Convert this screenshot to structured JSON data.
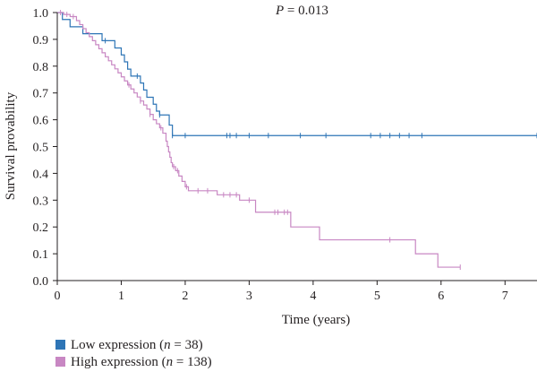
{
  "chart_data": {
    "type": "line",
    "subtype": "kaplan-meier",
    "annotation": {
      "p_label": "P",
      "p_value": "= 0.013"
    },
    "xlabel": "Time (years)",
    "ylabel": "Survival provability",
    "xlim": [
      0,
      7.5
    ],
    "ylim": [
      0,
      1.0
    ],
    "xticks": [
      "0",
      "1",
      "2",
      "3",
      "4",
      "5",
      "6",
      "7"
    ],
    "yticks": [
      "0.0",
      "0.1",
      "0.2",
      "0.3",
      "0.4",
      "0.5",
      "0.6",
      "0.7",
      "0.8",
      "0.9",
      "1.0"
    ],
    "grid": false,
    "legend_position": "bottom-left",
    "series": [
      {
        "name": "Low expression",
        "n_label": "n",
        "n_value": "= 38",
        "color": "#2e75b6",
        "steps": [
          [
            0,
            1.0
          ],
          [
            0.08,
            0.974
          ],
          [
            0.2,
            0.947
          ],
          [
            0.4,
            0.921
          ],
          [
            0.7,
            0.895
          ],
          [
            0.9,
            0.868
          ],
          [
            1.0,
            0.842
          ],
          [
            1.05,
            0.816
          ],
          [
            1.1,
            0.789
          ],
          [
            1.15,
            0.763
          ],
          [
            1.3,
            0.737
          ],
          [
            1.35,
            0.711
          ],
          [
            1.4,
            0.684
          ],
          [
            1.5,
            0.658
          ],
          [
            1.55,
            0.632
          ],
          [
            1.6,
            0.618
          ],
          [
            1.75,
            0.58
          ],
          [
            1.8,
            0.541
          ],
          [
            7.5,
            0.541
          ]
        ],
        "censored": [
          [
            0.75,
            0.895
          ],
          [
            1.25,
            0.763
          ],
          [
            1.6,
            0.618
          ],
          [
            1.8,
            0.541
          ],
          [
            2.0,
            0.541
          ],
          [
            2.65,
            0.541
          ],
          [
            2.7,
            0.541
          ],
          [
            2.8,
            0.541
          ],
          [
            3.0,
            0.541
          ],
          [
            3.3,
            0.541
          ],
          [
            3.8,
            0.541
          ],
          [
            4.2,
            0.541
          ],
          [
            4.9,
            0.541
          ],
          [
            5.05,
            0.541
          ],
          [
            5.2,
            0.541
          ],
          [
            5.35,
            0.541
          ],
          [
            5.5,
            0.541
          ],
          [
            5.7,
            0.541
          ],
          [
            7.5,
            0.541
          ]
        ]
      },
      {
        "name": "High expression",
        "n_label": "n",
        "n_value": "= 138",
        "color": "#c887c3",
        "steps": [
          [
            0,
            1.0
          ],
          [
            0.1,
            0.993
          ],
          [
            0.2,
            0.985
          ],
          [
            0.3,
            0.97
          ],
          [
            0.35,
            0.955
          ],
          [
            0.4,
            0.94
          ],
          [
            0.45,
            0.925
          ],
          [
            0.5,
            0.91
          ],
          [
            0.55,
            0.895
          ],
          [
            0.6,
            0.88
          ],
          [
            0.65,
            0.865
          ],
          [
            0.7,
            0.85
          ],
          [
            0.75,
            0.835
          ],
          [
            0.8,
            0.82
          ],
          [
            0.85,
            0.805
          ],
          [
            0.9,
            0.79
          ],
          [
            0.95,
            0.775
          ],
          [
            1.0,
            0.76
          ],
          [
            1.05,
            0.745
          ],
          [
            1.1,
            0.73
          ],
          [
            1.15,
            0.715
          ],
          [
            1.2,
            0.7
          ],
          [
            1.25,
            0.685
          ],
          [
            1.3,
            0.67
          ],
          [
            1.35,
            0.655
          ],
          [
            1.4,
            0.64
          ],
          [
            1.45,
            0.62
          ],
          [
            1.5,
            0.6
          ],
          [
            1.55,
            0.585
          ],
          [
            1.6,
            0.57
          ],
          [
            1.65,
            0.55
          ],
          [
            1.7,
            0.52
          ],
          [
            1.72,
            0.5
          ],
          [
            1.74,
            0.48
          ],
          [
            1.76,
            0.46
          ],
          [
            1.78,
            0.44
          ],
          [
            1.8,
            0.425
          ],
          [
            1.85,
            0.41
          ],
          [
            1.9,
            0.39
          ],
          [
            1.95,
            0.37
          ],
          [
            2.0,
            0.35
          ],
          [
            2.05,
            0.335
          ],
          [
            2.5,
            0.32
          ],
          [
            2.85,
            0.3
          ],
          [
            3.1,
            0.255
          ],
          [
            3.5,
            0.255
          ],
          [
            3.65,
            0.2
          ],
          [
            4.1,
            0.152
          ],
          [
            5.6,
            0.1
          ],
          [
            5.95,
            0.05
          ],
          [
            6.3,
            0.05
          ]
        ],
        "censored": [
          [
            0.05,
            1.0
          ],
          [
            0.15,
            0.993
          ],
          [
            0.25,
            0.985
          ],
          [
            1.12,
            0.73
          ],
          [
            1.3,
            0.67
          ],
          [
            1.45,
            0.62
          ],
          [
            1.62,
            0.57
          ],
          [
            1.82,
            0.425
          ],
          [
            1.88,
            0.41
          ],
          [
            2.02,
            0.35
          ],
          [
            2.2,
            0.335
          ],
          [
            2.35,
            0.335
          ],
          [
            2.6,
            0.32
          ],
          [
            2.7,
            0.32
          ],
          [
            2.8,
            0.32
          ],
          [
            3.0,
            0.3
          ],
          [
            3.4,
            0.255
          ],
          [
            3.45,
            0.255
          ],
          [
            3.55,
            0.255
          ],
          [
            3.6,
            0.255
          ],
          [
            5.2,
            0.152
          ],
          [
            6.3,
            0.05
          ]
        ]
      }
    ]
  }
}
